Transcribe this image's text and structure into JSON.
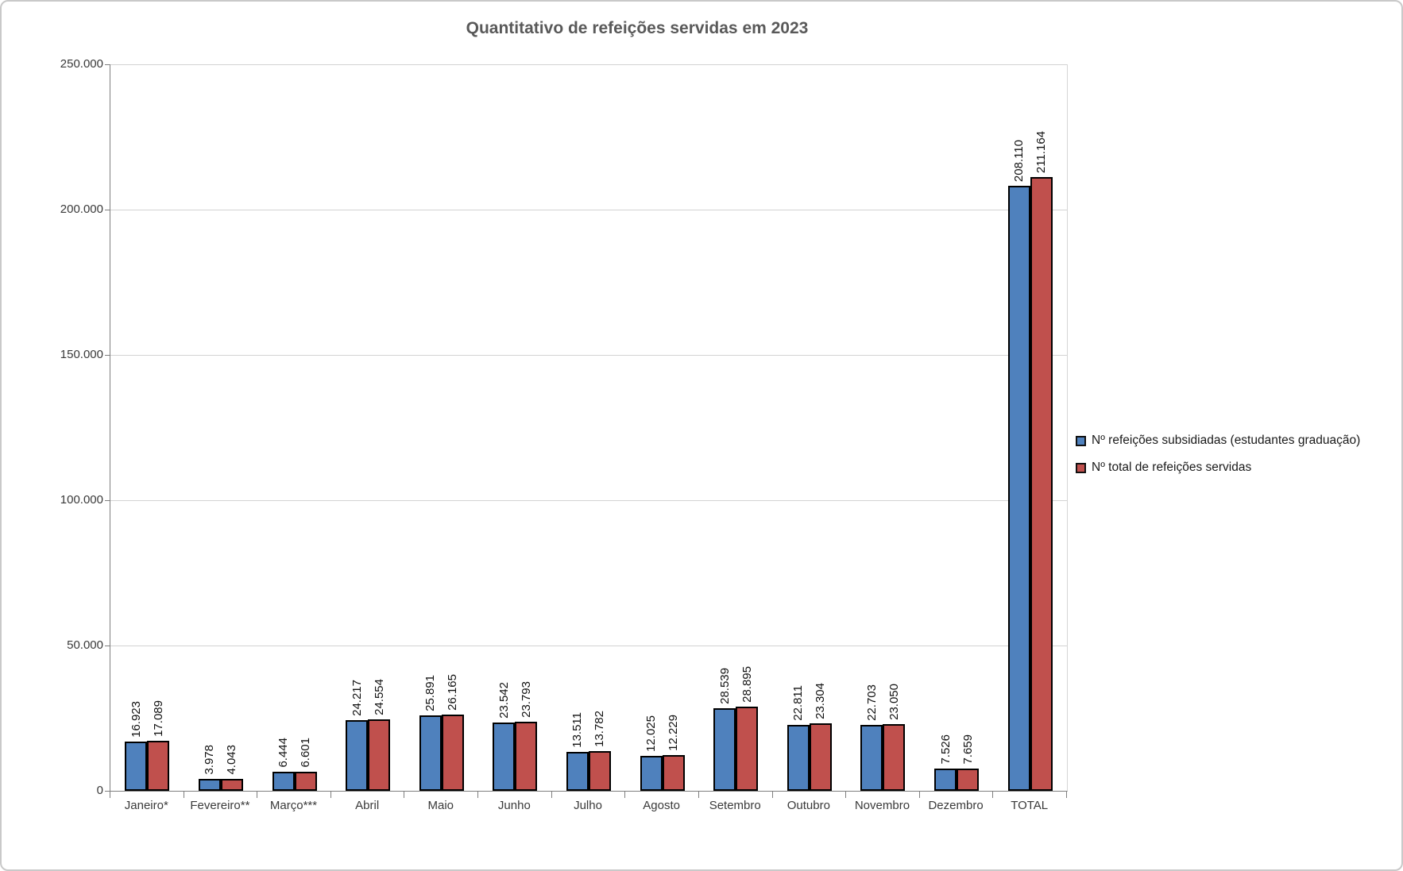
{
  "chart_data": {
    "type": "bar",
    "title": "Quantitativo de refeições servidas em 2023",
    "categories": [
      "Janeiro*",
      "Fevereiro**",
      "Março***",
      "Abril",
      "Maio",
      "Junho",
      "Julho",
      "Agosto",
      "Setembro",
      "Outubro",
      "Novembro",
      "Dezembro",
      "TOTAL"
    ],
    "series": [
      {
        "name": "Nº refeições subsidiadas (estudantes graduação)",
        "color": "#4F81BD",
        "values": [
          16923,
          3978,
          6444,
          24217,
          25891,
          23542,
          13511,
          12025,
          28539,
          22811,
          22703,
          7526,
          208110
        ]
      },
      {
        "name": "Nº total de refeições servidas",
        "color": "#C0504D",
        "values": [
          17089,
          4043,
          6601,
          24554,
          26165,
          23793,
          13782,
          12229,
          28895,
          23304,
          23050,
          7659,
          211164
        ]
      }
    ],
    "ylim": [
      0,
      250000
    ],
    "y_ticks": [
      "0",
      "50.000",
      "100.000",
      "150.000",
      "200.000",
      "250.000"
    ],
    "grid": true,
    "legend_position": "right",
    "data_labels": "rotated-90-above-bars",
    "number_format": "pt-BR thousands dot",
    "colors": {
      "title": "#595959",
      "axis_line": "#7F7F7F",
      "gridline": "#D3D3D3",
      "bar_border": "#000000",
      "label_text": "#111111"
    }
  }
}
